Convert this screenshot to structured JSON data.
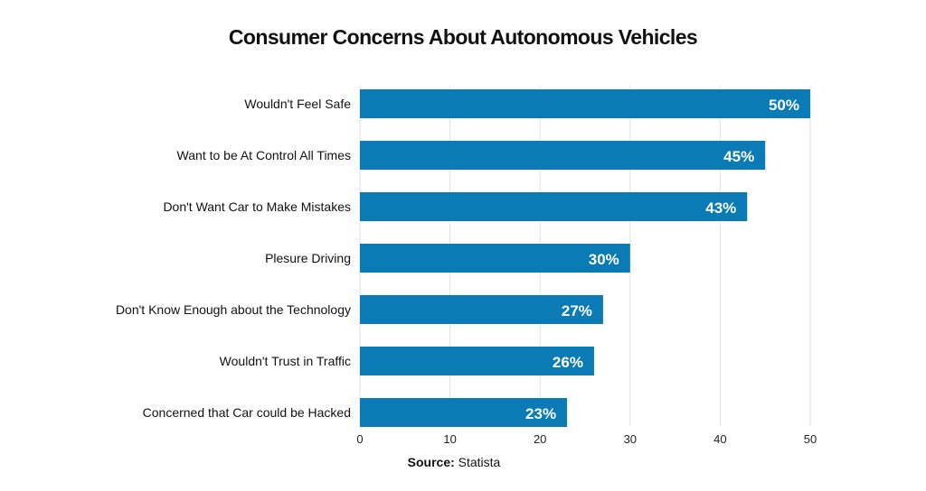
{
  "chart_data": {
    "type": "bar",
    "orientation": "horizontal",
    "title": "Consumer Concerns About Autonomous Vehicles",
    "categories": [
      "Wouldn't Feel Safe",
      "Want to be At Control All Times",
      "Don't Want Car to Make Mistakes",
      "Plesure Driving",
      "Don't Know Enough about the Technology",
      "Wouldn't Trust in Traffic",
      "Concerned that Car could be Hacked"
    ],
    "values": [
      50,
      45,
      43,
      30,
      27,
      26,
      23
    ],
    "data_labels": [
      "50%",
      "45%",
      "43%",
      "30%",
      "27%",
      "26%",
      "23%"
    ],
    "xlim": [
      0,
      50
    ],
    "xticks": [
      0,
      10,
      20,
      30,
      40,
      50
    ],
    "xlabel": "",
    "ylabel": "",
    "grid": "vertical",
    "legend": "none",
    "bar_color": "#0a7bb4"
  },
  "source": {
    "label": "Source:",
    "value": "Statista"
  }
}
